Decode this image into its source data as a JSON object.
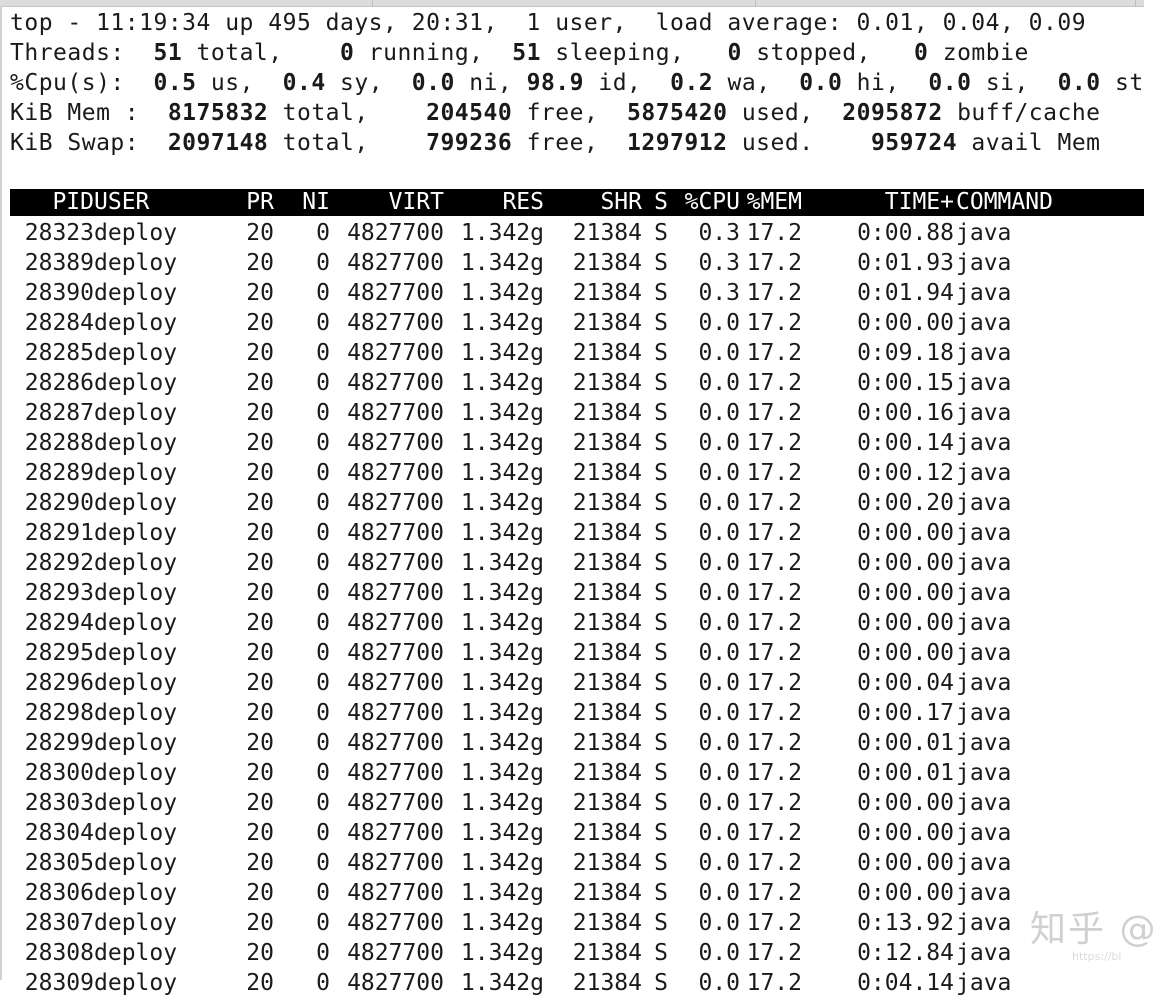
{
  "summary": {
    "line1": "top - 11:19:34 up 495 days, 20:31,  1 user,  load average: 0.01, 0.04, 0.09",
    "threads": {
      "label": "Threads:",
      "total": "51",
      "total_label": "total,",
      "running": "0",
      "running_label": "running,",
      "sleeping": "51",
      "sleeping_label": "sleeping,",
      "stopped": "0",
      "stopped_label": "stopped,",
      "zombie": "0",
      "zombie_label": "zombie"
    },
    "cpu": {
      "label": "%Cpu(s):",
      "us": "0.5",
      "us_label": "us,",
      "sy": "0.4",
      "sy_label": "sy,",
      "ni": "0.0",
      "ni_label": "ni,",
      "id": "98.9",
      "id_label": "id,",
      "wa": "0.2",
      "wa_label": "wa,",
      "hi": "0.0",
      "hi_label": "hi,",
      "si": "0.0",
      "si_label": "si,",
      "st": "0.0",
      "st_label": "st"
    },
    "mem": {
      "label": "KiB Mem :",
      "total": "8175832",
      "total_label": "total,",
      "free": "204540",
      "free_label": "free,",
      "used": "5875420",
      "used_label": "used,",
      "buff": "2095872",
      "buff_label": "buff/cache"
    },
    "swap": {
      "label": "KiB Swap:",
      "total": "2097148",
      "total_label": "total,",
      "free": "799236",
      "free_label": "free,",
      "used": "1297912",
      "used_label": "used.",
      "avail": "959724",
      "avail_label": "avail Mem"
    }
  },
  "table": {
    "columns": [
      "PID",
      "USER",
      "PR",
      "NI",
      "VIRT",
      "RES",
      "SHR",
      "S",
      "%CPU",
      "%MEM",
      "TIME+",
      "COMMAND"
    ],
    "rows": [
      [
        "28323",
        "deploy",
        "20",
        "0",
        "4827700",
        "1.342g",
        "21384",
        "S",
        "0.3",
        "17.2",
        "0:00.88",
        "java"
      ],
      [
        "28389",
        "deploy",
        "20",
        "0",
        "4827700",
        "1.342g",
        "21384",
        "S",
        "0.3",
        "17.2",
        "0:01.93",
        "java"
      ],
      [
        "28390",
        "deploy",
        "20",
        "0",
        "4827700",
        "1.342g",
        "21384",
        "S",
        "0.3",
        "17.2",
        "0:01.94",
        "java"
      ],
      [
        "28284",
        "deploy",
        "20",
        "0",
        "4827700",
        "1.342g",
        "21384",
        "S",
        "0.0",
        "17.2",
        "0:00.00",
        "java"
      ],
      [
        "28285",
        "deploy",
        "20",
        "0",
        "4827700",
        "1.342g",
        "21384",
        "S",
        "0.0",
        "17.2",
        "0:09.18",
        "java"
      ],
      [
        "28286",
        "deploy",
        "20",
        "0",
        "4827700",
        "1.342g",
        "21384",
        "S",
        "0.0",
        "17.2",
        "0:00.15",
        "java"
      ],
      [
        "28287",
        "deploy",
        "20",
        "0",
        "4827700",
        "1.342g",
        "21384",
        "S",
        "0.0",
        "17.2",
        "0:00.16",
        "java"
      ],
      [
        "28288",
        "deploy",
        "20",
        "0",
        "4827700",
        "1.342g",
        "21384",
        "S",
        "0.0",
        "17.2",
        "0:00.14",
        "java"
      ],
      [
        "28289",
        "deploy",
        "20",
        "0",
        "4827700",
        "1.342g",
        "21384",
        "S",
        "0.0",
        "17.2",
        "0:00.12",
        "java"
      ],
      [
        "28290",
        "deploy",
        "20",
        "0",
        "4827700",
        "1.342g",
        "21384",
        "S",
        "0.0",
        "17.2",
        "0:00.20",
        "java"
      ],
      [
        "28291",
        "deploy",
        "20",
        "0",
        "4827700",
        "1.342g",
        "21384",
        "S",
        "0.0",
        "17.2",
        "0:00.00",
        "java"
      ],
      [
        "28292",
        "deploy",
        "20",
        "0",
        "4827700",
        "1.342g",
        "21384",
        "S",
        "0.0",
        "17.2",
        "0:00.00",
        "java"
      ],
      [
        "28293",
        "deploy",
        "20",
        "0",
        "4827700",
        "1.342g",
        "21384",
        "S",
        "0.0",
        "17.2",
        "0:00.00",
        "java"
      ],
      [
        "28294",
        "deploy",
        "20",
        "0",
        "4827700",
        "1.342g",
        "21384",
        "S",
        "0.0",
        "17.2",
        "0:00.00",
        "java"
      ],
      [
        "28295",
        "deploy",
        "20",
        "0",
        "4827700",
        "1.342g",
        "21384",
        "S",
        "0.0",
        "17.2",
        "0:00.00",
        "java"
      ],
      [
        "28296",
        "deploy",
        "20",
        "0",
        "4827700",
        "1.342g",
        "21384",
        "S",
        "0.0",
        "17.2",
        "0:00.04",
        "java"
      ],
      [
        "28298",
        "deploy",
        "20",
        "0",
        "4827700",
        "1.342g",
        "21384",
        "S",
        "0.0",
        "17.2",
        "0:00.17",
        "java"
      ],
      [
        "28299",
        "deploy",
        "20",
        "0",
        "4827700",
        "1.342g",
        "21384",
        "S",
        "0.0",
        "17.2",
        "0:00.01",
        "java"
      ],
      [
        "28300",
        "deploy",
        "20",
        "0",
        "4827700",
        "1.342g",
        "21384",
        "S",
        "0.0",
        "17.2",
        "0:00.01",
        "java"
      ],
      [
        "28303",
        "deploy",
        "20",
        "0",
        "4827700",
        "1.342g",
        "21384",
        "S",
        "0.0",
        "17.2",
        "0:00.00",
        "java"
      ],
      [
        "28304",
        "deploy",
        "20",
        "0",
        "4827700",
        "1.342g",
        "21384",
        "S",
        "0.0",
        "17.2",
        "0:00.00",
        "java"
      ],
      [
        "28305",
        "deploy",
        "20",
        "0",
        "4827700",
        "1.342g",
        "21384",
        "S",
        "0.0",
        "17.2",
        "0:00.00",
        "java"
      ],
      [
        "28306",
        "deploy",
        "20",
        "0",
        "4827700",
        "1.342g",
        "21384",
        "S",
        "0.0",
        "17.2",
        "0:00.00",
        "java"
      ],
      [
        "28307",
        "deploy",
        "20",
        "0",
        "4827700",
        "1.342g",
        "21384",
        "S",
        "0.0",
        "17.2",
        "0:13.92",
        "java"
      ],
      [
        "28308",
        "deploy",
        "20",
        "0",
        "4827700",
        "1.342g",
        "21384",
        "S",
        "0.0",
        "17.2",
        "0:12.84",
        "java"
      ],
      [
        "28309",
        "deploy",
        "20",
        "0",
        "4827700",
        "1.342g",
        "21384",
        "S",
        "0.0",
        "17.2",
        "0:04.14",
        "java"
      ]
    ]
  },
  "watermark": {
    "text": "知乎 @",
    "url": "https://bl"
  }
}
